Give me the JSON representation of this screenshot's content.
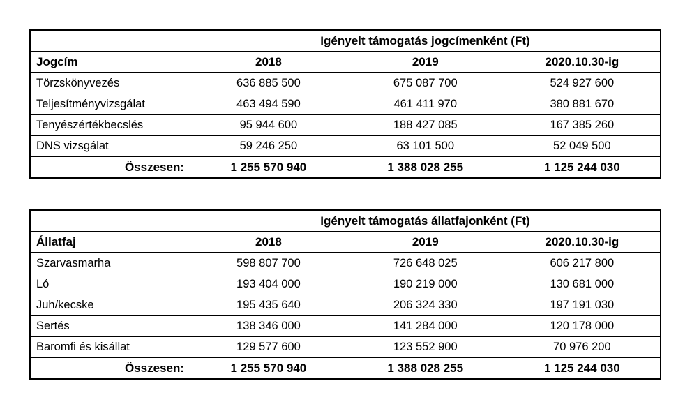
{
  "page": {
    "background_color": "#ffffff",
    "border_color": "#000000",
    "text_color": "#000000"
  },
  "tables": [
    {
      "title": "Igényelt támogatás jogcímenként (Ft)",
      "label_header": "Jogcím",
      "year_headers": [
        "2018",
        "2019",
        "2020.10.30-ig"
      ],
      "rows": [
        {
          "label": "Törzskönyvezés",
          "values": [
            "636 885 500",
            "675 087 700",
            "524 927 600"
          ]
        },
        {
          "label": "Teljesítményvizsgálat",
          "values": [
            "463 494 590",
            "461 411 970",
            "380 881 670"
          ]
        },
        {
          "label": "Tenyészértékbecslés",
          "values": [
            "95 944 600",
            "188 427 085",
            "167 385 260"
          ]
        },
        {
          "label": "DNS vizsgálat",
          "values": [
            "59 246 250",
            "63 101 500",
            "52 049 500"
          ]
        }
      ],
      "total": {
        "label": "Összesen:",
        "values": [
          "1 255 570 940",
          "1 388 028 255",
          "1 125 244 030"
        ]
      }
    },
    {
      "title": "Igényelt támogatás állatfajonként (Ft)",
      "label_header": "Állatfaj",
      "year_headers": [
        "2018",
        "2019",
        "2020.10.30-ig"
      ],
      "rows": [
        {
          "label": "Szarvasmarha",
          "values": [
            "598 807 700",
            "726 648 025",
            "606 217 800"
          ]
        },
        {
          "label": "Ló",
          "values": [
            "193 404 000",
            "190 219 000",
            "130 681 000"
          ]
        },
        {
          "label": "Juh/kecske",
          "values": [
            "195 435 640",
            "206 324 330",
            "197 191 030"
          ]
        },
        {
          "label": "Sertés",
          "values": [
            "138 346 000",
            "141 284 000",
            "120 178 000"
          ]
        },
        {
          "label": "Baromfi és kisállat",
          "values": [
            "129 577 600",
            "123 552 900",
            "70 976 200"
          ]
        }
      ],
      "total": {
        "label": "Összesen:",
        "values": [
          "1 255 570 940",
          "1 388 028 255",
          "1 125 244 030"
        ]
      }
    }
  ]
}
